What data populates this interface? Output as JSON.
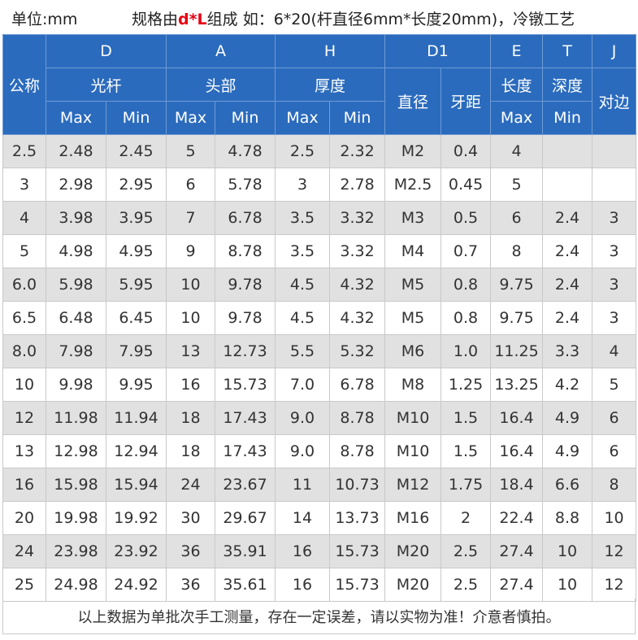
{
  "top": {
    "unit": "单位:mm",
    "spec_prefix": "规格由",
    "spec_highlight": "d*L",
    "spec_suffix": "组成 如：6*20(杆直径6mm*长度20mm)，冷镦工艺"
  },
  "header": {
    "name_col": "公称",
    "groups": {
      "D": "D",
      "A": "A",
      "H": "H",
      "D1": "D1",
      "E": "E",
      "T": "T",
      "J": "J"
    },
    "sub": {
      "shaft": "光杆",
      "head": "头部",
      "thickness": "厚度",
      "diameter": "直径",
      "pitch": "牙距",
      "length": "长度",
      "depth": "深度",
      "across": "对边"
    },
    "minmax": {
      "d_max": "Max",
      "d_min": "Min",
      "a_max": "Max",
      "a_min": "Min",
      "h_max": "Max",
      "h_min": "Min",
      "e_max": "Max",
      "t_min": "Min"
    }
  },
  "rows": [
    [
      "2.5",
      "2.48",
      "2.45",
      "5",
      "4.78",
      "2.5",
      "2.32",
      "M2",
      "0.4",
      "4",
      "",
      ""
    ],
    [
      "3",
      "2.98",
      "2.95",
      "6",
      "5.78",
      "3",
      "2.78",
      "M2.5",
      "0.45",
      "5",
      "",
      ""
    ],
    [
      "4",
      "3.98",
      "3.95",
      "7",
      "6.78",
      "3.5",
      "3.32",
      "M3",
      "0.5",
      "6",
      "2.4",
      "3"
    ],
    [
      "5",
      "4.98",
      "4.95",
      "9",
      "8.78",
      "3.5",
      "3.32",
      "M4",
      "0.7",
      "8",
      "2.4",
      "3"
    ],
    [
      "6.0",
      "5.98",
      "5.95",
      "10",
      "9.78",
      "4.5",
      "4.32",
      "M5",
      "0.8",
      "9.75",
      "2.4",
      "3"
    ],
    [
      "6.5",
      "6.48",
      "6.45",
      "10",
      "9.78",
      "4.5",
      "4.32",
      "M5",
      "0.8",
      "9.75",
      "2.4",
      "3"
    ],
    [
      "8.0",
      "7.98",
      "7.95",
      "13",
      "12.73",
      "5.5",
      "5.32",
      "M6",
      "1.0",
      "11.25",
      "3.3",
      "4"
    ],
    [
      "10",
      "9.98",
      "9.95",
      "16",
      "15.73",
      "7.0",
      "6.78",
      "M8",
      "1.25",
      "13.25",
      "4.2",
      "5"
    ],
    [
      "12",
      "11.98",
      "11.94",
      "18",
      "17.43",
      "9.0",
      "8.78",
      "M10",
      "1.5",
      "16.4",
      "4.9",
      "6"
    ],
    [
      "13",
      "12.98",
      "12.94",
      "18",
      "17.43",
      "9.0",
      "8.78",
      "M10",
      "1.5",
      "16.4",
      "4.9",
      "6"
    ],
    [
      "16",
      "15.98",
      "15.94",
      "24",
      "23.67",
      "11",
      "10.73",
      "M12",
      "1.75",
      "18.4",
      "6.6",
      "8"
    ],
    [
      "20",
      "19.98",
      "19.92",
      "30",
      "29.67",
      "14",
      "13.73",
      "M16",
      "2",
      "22.4",
      "8.8",
      "10"
    ],
    [
      "24",
      "23.98",
      "23.92",
      "36",
      "35.91",
      "16",
      "15.73",
      "M20",
      "2.5",
      "27.4",
      "10",
      "12"
    ],
    [
      "25",
      "24.98",
      "24.92",
      "36",
      "35.61",
      "16",
      "15.73",
      "M20",
      "2.5",
      "27.4",
      "10",
      "12"
    ]
  ],
  "footer": "以上数据为单批次手工测量，存在一定误差，请以实物为准！介意者慎拍。",
  "colors": {
    "header_bg": "#2b6bbd",
    "stripe": "#e1e1e1",
    "highlight": "#e60012"
  }
}
